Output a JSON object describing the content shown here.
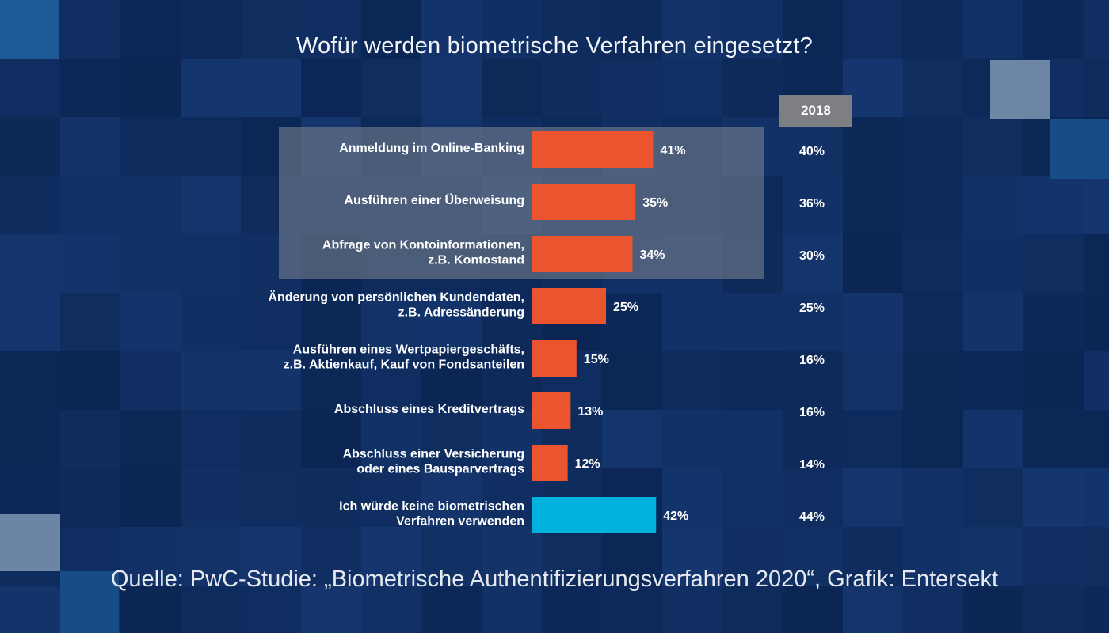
{
  "title": "Wofür werden biometrische Verfahren eingesetzt?",
  "compare_year_label": "2018",
  "source": "Quelle: PwC-Studie: „Biometrische Authentifizierungsverfahren 2020“, Grafik: Entersekt",
  "colors": {
    "background": "#0b2a5c",
    "bar_primary": "#ea5530",
    "bar_highlight": "#00b2de",
    "highlight_panel": "#808691",
    "year_badge": "#7d7f83"
  },
  "chart_data": {
    "type": "bar",
    "orientation": "horizontal",
    "title": "Wofür werden biometrische Verfahren eingesetzt?",
    "categories": [
      [
        "Anmeldung im Online-Banking"
      ],
      [
        "Ausführen einer Überweisung"
      ],
      [
        "Abfrage von Kontoinformationen,",
        "z.B. Kontostand"
      ],
      [
        "Änderung von persönlichen Kundendaten,",
        "z.B. Adressänderung"
      ],
      [
        "Ausführen eines Wertpapiergeschäfts,",
        "z.B. Aktienkauf, Kauf von Fondsanteilen"
      ],
      [
        "Abschluss eines Kreditvertrags"
      ],
      [
        "Abschluss einer Versicherung",
        "oder eines Bausparvertrags"
      ],
      [
        "Ich würde keine biometrischen",
        "Verfahren verwenden"
      ]
    ],
    "values": [
      41,
      35,
      34,
      25,
      15,
      13,
      12,
      42
    ],
    "value_labels": [
      "41%",
      "35%",
      "34%",
      "25%",
      "15%",
      "13%",
      "12%",
      "42%"
    ],
    "values_2018": [
      40,
      36,
      30,
      25,
      16,
      16,
      14,
      44
    ],
    "values_2018_labels": [
      "40%",
      "36%",
      "30%",
      "25%",
      "16%",
      "16%",
      "14%",
      "44%"
    ],
    "highlighted_rows": [
      0,
      1,
      2
    ],
    "accent_rows": [
      7
    ],
    "unit": "%",
    "grid": false
  }
}
